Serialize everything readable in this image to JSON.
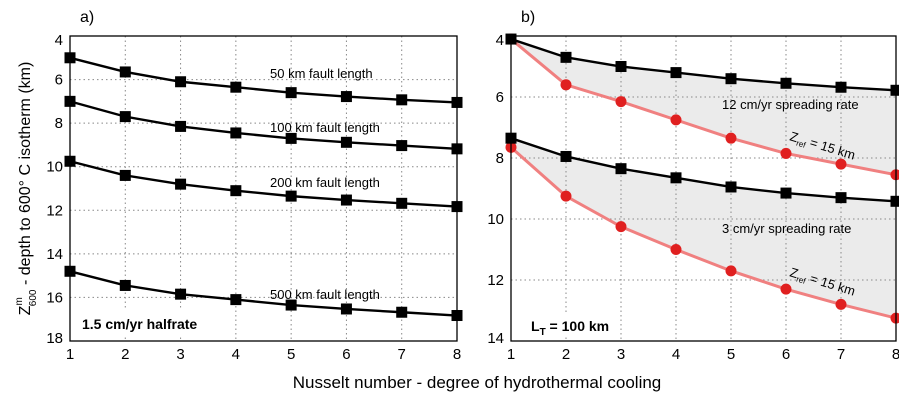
{
  "xlabel": "Nusselt number - degree of hydrothermal cooling",
  "chart_data": [
    {
      "type": "line",
      "panel_label": "a)",
      "ylabel_main": "Z",
      "ylabel_sup": "m",
      "ylabel_sub": "600",
      "ylabel_rest": " - depth to 600° C isotherm (km)",
      "x_ticks": [
        "1",
        "2",
        "3",
        "4",
        "5",
        "6",
        "7",
        "8"
      ],
      "y_ticks": [
        "4",
        "6",
        "8",
        "10",
        "12",
        "14",
        "16",
        "18"
      ],
      "xlim": [
        1,
        8
      ],
      "ylim": [
        4,
        18
      ],
      "y_inverted": true,
      "grid": true,
      "box_label": "1.5 cm/yr halfrate",
      "x": [
        1,
        2,
        3,
        4,
        5,
        6,
        7,
        8
      ],
      "series": [
        {
          "label": "50 km fault length",
          "color": "#000000",
          "values": [
            5.0,
            5.65,
            6.1,
            6.35,
            6.6,
            6.78,
            6.93,
            7.05
          ]
        },
        {
          "label": "100 km fault length",
          "color": "#000000",
          "values": [
            7.0,
            7.7,
            8.15,
            8.45,
            8.7,
            8.88,
            9.03,
            9.18
          ]
        },
        {
          "label": "200 km fault length",
          "color": "#000000",
          "values": [
            9.75,
            10.4,
            10.8,
            11.1,
            11.35,
            11.53,
            11.68,
            11.83
          ]
        },
        {
          "label": "500 km fault length",
          "color": "#000000",
          "values": [
            14.8,
            15.45,
            15.85,
            16.1,
            16.35,
            16.53,
            16.68,
            16.83
          ]
        }
      ]
    },
    {
      "type": "line",
      "panel_label": "b)",
      "x_ticks": [
        "1",
        "2",
        "3",
        "4",
        "5",
        "6",
        "7",
        "8"
      ],
      "y_ticks": [
        "4",
        "6",
        "8",
        "10",
        "12",
        "14"
      ],
      "xlim": [
        1,
        8
      ],
      "ylim": [
        4,
        14
      ],
      "y_inverted": true,
      "grid": true,
      "box_label_main": "L",
      "box_label_sub": "T",
      "box_label_rest": " = 100 km",
      "x": [
        1,
        2,
        3,
        4,
        5,
        6,
        7,
        8
      ],
      "groups": [
        {
          "label": "12 cm/yr spreading rate",
          "zref_main": "Z",
          "zref_sub": "ref",
          "zref_rest": " = 15 km",
          "fill": "#ebebeb",
          "upper": {
            "color": "#000000",
            "values": [
              4.1,
              4.7,
              5.0,
              5.2,
              5.4,
              5.55,
              5.68,
              5.78
            ]
          },
          "lower": {
            "color": "#e02020",
            "values": [
              4.1,
              5.6,
              6.15,
              6.75,
              7.35,
              7.85,
              8.2,
              8.55
            ]
          }
        },
        {
          "label": "3 cm/yr spreading rate",
          "zref_main": "Z",
          "zref_sub": "ref",
          "zref_rest": " = 15 km",
          "fill": "#ebebeb",
          "upper": {
            "color": "#000000",
            "values": [
              7.35,
              7.95,
              8.35,
              8.65,
              8.95,
              9.15,
              9.3,
              9.42
            ]
          },
          "lower": {
            "color": "#e02020",
            "values": [
              7.65,
              9.25,
              10.25,
              11.0,
              11.7,
              12.3,
              12.8,
              13.25
            ]
          }
        }
      ]
    }
  ]
}
